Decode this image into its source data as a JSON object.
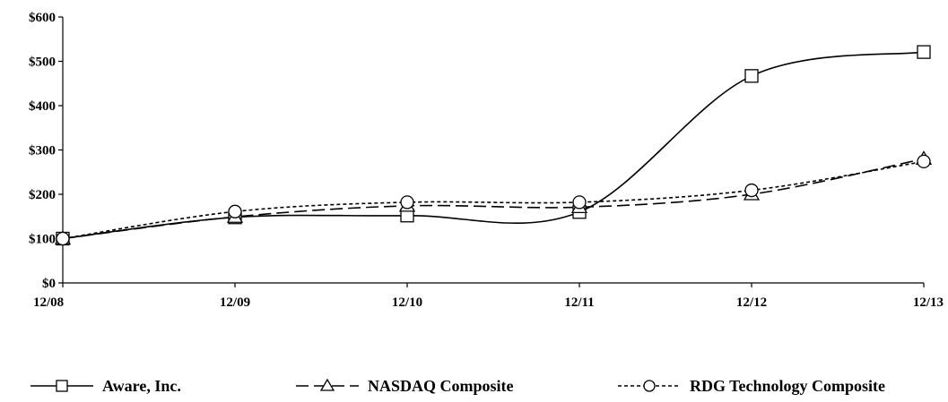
{
  "chart_data": {
    "type": "line",
    "categories": [
      "12/08",
      "12/09",
      "12/10",
      "12/11",
      "12/12",
      "12/13"
    ],
    "y_ticks": [
      "$0",
      "$100",
      "$200",
      "$300",
      "$400",
      "$500",
      "$600"
    ],
    "ylim": [
      0,
      600
    ],
    "grid": false,
    "legend_position": "bottom",
    "series": [
      {
        "name": "Aware, Inc.",
        "values": [
          100,
          148,
          152,
          160,
          467,
          521
        ],
        "marker": "square",
        "dash": "solid",
        "color": "#000000"
      },
      {
        "name": "NASDAQ Composite",
        "values": [
          100,
          149,
          174,
          171,
          200,
          280
        ],
        "marker": "triangle",
        "dash": "long-dash",
        "color": "#000000"
      },
      {
        "name": "RDG Technology Composite",
        "values": [
          100,
          161,
          182,
          182,
          209,
          274
        ],
        "marker": "circle",
        "dash": "short-dash",
        "color": "#000000"
      }
    ]
  }
}
